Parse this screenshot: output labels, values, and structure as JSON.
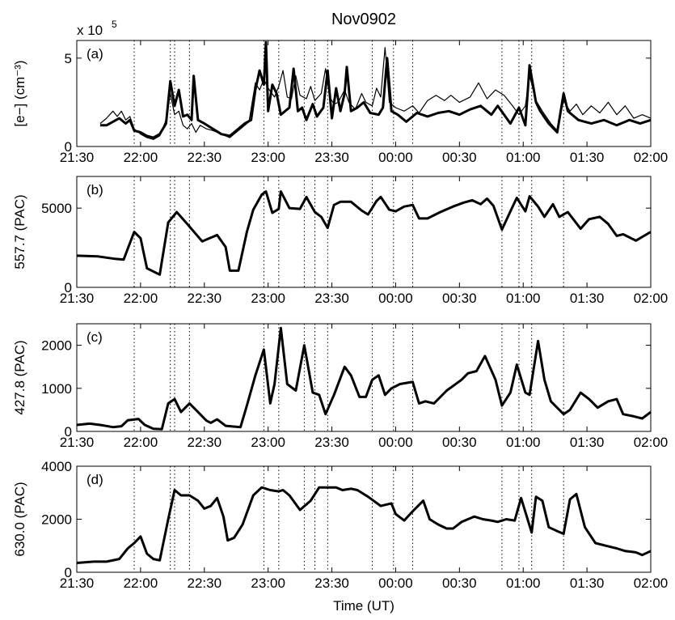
{
  "event_times": [
    27,
    44,
    46,
    53,
    88,
    95,
    107,
    112,
    118,
    139,
    149,
    158,
    200,
    208,
    214,
    229
  ],
  "chart_data": [
    {
      "type": "line",
      "title": "Nov0902",
      "annotation": "(a)",
      "ylabel": "[e−] (cm⁻³)",
      "y_scale_label": "x 10",
      "y_scale_exponent": "5",
      "xlim": [
        0,
        270
      ],
      "xticks": [
        {
          "value": 0,
          "label": "21:30"
        },
        {
          "value": 30,
          "label": "22:00"
        },
        {
          "value": 60,
          "label": "22:30"
        },
        {
          "value": 90,
          "label": "23:00"
        },
        {
          "value": 120,
          "label": "23:30"
        },
        {
          "value": 150,
          "label": "00:00"
        },
        {
          "value": 180,
          "label": "00:30"
        },
        {
          "value": 210,
          "label": "01:00"
        },
        {
          "value": 240,
          "label": "01:30"
        },
        {
          "value": 270,
          "label": "02:00"
        }
      ],
      "ylim": [
        0,
        6
      ],
      "yticks": [
        0,
        5
      ],
      "series": [
        {
          "color": "#000000",
          "width": 3,
          "x": [
            11,
            14,
            17,
            20,
            23,
            25,
            27,
            30,
            33,
            36,
            39,
            42,
            44,
            46,
            48,
            50,
            52,
            54,
            55,
            57,
            60,
            64,
            68,
            72,
            76,
            79,
            82,
            84,
            86,
            88,
            89,
            90,
            92,
            94,
            96,
            98,
            100,
            102,
            104,
            106,
            108,
            111,
            113,
            116,
            118,
            120,
            122,
            124,
            126,
            127,
            129,
            132,
            135,
            138,
            142,
            144,
            146,
            148,
            151,
            155,
            160,
            165,
            170,
            175,
            180,
            185,
            190,
            195,
            198,
            201,
            204,
            208,
            211,
            213,
            216,
            218,
            222,
            226,
            229,
            231,
            236,
            242,
            248,
            254,
            260,
            265,
            270
          ],
          "values": [
            1.2,
            1.2,
            1.4,
            1.6,
            1.3,
            1.5,
            0.9,
            0.8,
            0.6,
            0.5,
            0.7,
            1.3,
            3.7,
            2.3,
            3.2,
            1.7,
            1.8,
            1.5,
            4.0,
            1.5,
            1.3,
            1.0,
            0.7,
            0.6,
            1.0,
            1.3,
            1.5,
            3.2,
            4.3,
            3.5,
            5.9,
            2.0,
            3.5,
            3.0,
            1.8,
            2.0,
            2.2,
            4.4,
            2.0,
            2.2,
            1.5,
            2.4,
            1.7,
            2.2,
            4.3,
            1.6,
            3.3,
            2.0,
            3.0,
            4.5,
            2.0,
            2.2,
            2.5,
            1.9,
            1.8,
            2.2,
            5.0,
            2.0,
            1.8,
            1.4,
            1.9,
            1.7,
            1.9,
            2.0,
            1.8,
            2.1,
            2.3,
            1.8,
            2.3,
            1.8,
            1.3,
            2.2,
            1.2,
            4.6,
            2.5,
            2.0,
            1.3,
            0.8,
            3.0,
            2.0,
            1.5,
            1.3,
            1.5,
            1.2,
            1.5,
            1.3,
            1.5
          ]
        },
        {
          "color": "#000000",
          "width": 1.2,
          "x": [
            11,
            14,
            17,
            19,
            21,
            23,
            25,
            27,
            30,
            33,
            36,
            39,
            42,
            44,
            46,
            48,
            50,
            52,
            54,
            56,
            58,
            61,
            64,
            68,
            72,
            75,
            78,
            81,
            84,
            86,
            88,
            90,
            93,
            95,
            97,
            99,
            101,
            103,
            105,
            108,
            110,
            112,
            115,
            117,
            119,
            121,
            123,
            126,
            128,
            131,
            134,
            136,
            139,
            141,
            143,
            145,
            147,
            150,
            154,
            158,
            161,
            165,
            169,
            173,
            176,
            180,
            185,
            189,
            193,
            197,
            201,
            205,
            208,
            211,
            213,
            216,
            219,
            223,
            226,
            229,
            232,
            235,
            238,
            242,
            246,
            250,
            254,
            258,
            262,
            266,
            270
          ],
          "values": [
            1.3,
            1.6,
            2.0,
            1.7,
            2.0,
            1.5,
            1.7,
            1.0,
            0.7,
            0.5,
            0.4,
            0.6,
            1.5,
            3.0,
            1.8,
            2.0,
            1.2,
            1.0,
            1.3,
            0.8,
            1.2,
            1.0,
            0.9,
            0.7,
            0.5,
            0.8,
            1.1,
            1.4,
            3.6,
            3.2,
            3.8,
            3.3,
            2.8,
            3.4,
            4.3,
            2.8,
            2.7,
            4.0,
            2.9,
            2.7,
            3.4,
            2.6,
            3.0,
            4.4,
            2.8,
            2.4,
            2.5,
            3.2,
            2.5,
            2.1,
            3.0,
            2.5,
            2.3,
            3.3,
            2.8,
            5.6,
            2.5,
            2.2,
            2.0,
            2.3,
            1.9,
            2.6,
            2.9,
            2.6,
            2.9,
            2.5,
            2.8,
            3.6,
            2.7,
            3.2,
            2.9,
            2.3,
            1.8,
            2.3,
            4.0,
            2.6,
            2.0,
            1.3,
            0.9,
            2.6,
            2.0,
            2.4,
            1.8,
            2.3,
            1.9,
            2.5,
            1.8,
            2.3,
            1.6,
            1.8,
            1.6
          ]
        }
      ]
    },
    {
      "type": "line",
      "annotation": "(b)",
      "ylabel": "557.7 (PAC)",
      "xlim": [
        0,
        270
      ],
      "xticks": [
        {
          "value": 0,
          "label": "21:30"
        },
        {
          "value": 30,
          "label": "22:00"
        },
        {
          "value": 60,
          "label": "22:30"
        },
        {
          "value": 90,
          "label": "23:00"
        },
        {
          "value": 120,
          "label": "23:30"
        },
        {
          "value": 150,
          "label": "00:00"
        },
        {
          "value": 180,
          "label": "00:30"
        },
        {
          "value": 210,
          "label": "01:00"
        },
        {
          "value": 240,
          "label": "01:30"
        },
        {
          "value": 270,
          "label": "02:00"
        }
      ],
      "ylim": [
        0,
        7000
      ],
      "yticks": [
        0,
        5000
      ],
      "series": [
        {
          "color": "#000000",
          "width": 3,
          "x": [
            0,
            10,
            18,
            22,
            27,
            30,
            33,
            39,
            43,
            47,
            52,
            59,
            66,
            70,
            72,
            76,
            80,
            83,
            87,
            89,
            92,
            95,
            96,
            100,
            105,
            108,
            112,
            115,
            118,
            121,
            124,
            129,
            134,
            137,
            141,
            143,
            147,
            150,
            154,
            158,
            161,
            165,
            171,
            177,
            182,
            186,
            190,
            193,
            196,
            200,
            204,
            207,
            211,
            213,
            217,
            220,
            224,
            227,
            231,
            237,
            241,
            246,
            250,
            254,
            257,
            263,
            270
          ],
          "values": [
            2000,
            1950,
            1800,
            1750,
            3500,
            3100,
            1200,
            800,
            4100,
            4750,
            4000,
            2900,
            3300,
            2550,
            1050,
            1050,
            3500,
            4900,
            5850,
            6050,
            4700,
            4950,
            6050,
            5000,
            4950,
            5700,
            4750,
            4450,
            3750,
            5200,
            5400,
            5400,
            4850,
            4600,
            5450,
            5700,
            4900,
            4800,
            5100,
            5200,
            4350,
            4350,
            4750,
            5100,
            5350,
            5500,
            5250,
            5600,
            5150,
            3650,
            4800,
            5650,
            4800,
            5750,
            5100,
            4450,
            5250,
            4450,
            4750,
            3700,
            4300,
            4450,
            4000,
            3250,
            3350,
            2950,
            3500
          ]
        }
      ]
    },
    {
      "type": "line",
      "annotation": "(c)",
      "ylabel": "427.8 (PAC)",
      "xlim": [
        0,
        270
      ],
      "xticks": [
        {
          "value": 0,
          "label": "21:30"
        },
        {
          "value": 30,
          "label": "22:00"
        },
        {
          "value": 60,
          "label": "22:30"
        },
        {
          "value": 90,
          "label": "23:00"
        },
        {
          "value": 120,
          "label": "23:30"
        },
        {
          "value": 150,
          "label": "00:00"
        },
        {
          "value": 180,
          "label": "00:30"
        },
        {
          "value": 210,
          "label": "01:00"
        },
        {
          "value": 240,
          "label": "01:30"
        },
        {
          "value": 270,
          "label": "02:00"
        }
      ],
      "ylim": [
        0,
        2500
      ],
      "yticks": [
        0,
        1000,
        2000
      ],
      "series": [
        {
          "color": "#000000",
          "width": 3,
          "x": [
            0,
            6,
            11,
            17,
            21,
            24,
            29,
            32,
            36,
            40,
            43,
            46,
            49,
            53,
            61,
            63,
            66,
            70,
            77,
            80,
            84,
            88,
            91,
            93,
            96,
            99,
            103,
            107,
            111,
            114,
            117,
            121,
            126,
            129,
            133,
            136,
            139,
            142,
            145,
            148,
            152,
            158,
            161,
            164,
            168,
            174,
            181,
            184,
            188,
            192,
            197,
            200,
            204,
            207,
            211,
            213,
            217,
            220,
            223,
            229,
            232,
            237,
            241,
            245,
            250,
            254,
            257,
            262,
            266,
            270
          ],
          "values": [
            150,
            180,
            150,
            100,
            120,
            260,
            290,
            150,
            60,
            50,
            650,
            750,
            450,
            650,
            250,
            200,
            280,
            130,
            100,
            600,
            1300,
            1900,
            650,
            1100,
            2400,
            1100,
            950,
            2000,
            900,
            850,
            400,
            850,
            1500,
            1300,
            800,
            800,
            1200,
            1300,
            850,
            1000,
            1100,
            1150,
            650,
            700,
            650,
            950,
            1200,
            1350,
            1400,
            1750,
            1200,
            600,
            900,
            1550,
            900,
            850,
            2100,
            1200,
            700,
            400,
            500,
            900,
            750,
            550,
            700,
            750,
            400,
            350,
            300,
            450
          ]
        }
      ]
    },
    {
      "type": "line",
      "annotation": "(d)",
      "ylabel": "630.0 (PAC)",
      "xlabel": "Time (UT)",
      "xlim": [
        0,
        270
      ],
      "xticks": [
        {
          "value": 0,
          "label": "21:30"
        },
        {
          "value": 30,
          "label": "22:00"
        },
        {
          "value": 60,
          "label": "22:30"
        },
        {
          "value": 90,
          "label": "23:00"
        },
        {
          "value": 120,
          "label": "23:30"
        },
        {
          "value": 150,
          "label": "00:00"
        },
        {
          "value": 180,
          "label": "00:30"
        },
        {
          "value": 210,
          "label": "01:00"
        },
        {
          "value": 240,
          "label": "01:30"
        },
        {
          "value": 270,
          "label": "02:00"
        }
      ],
      "ylim": [
        0,
        4000
      ],
      "yticks": [
        0,
        2000,
        4000
      ],
      "series": [
        {
          "color": "#000000",
          "width": 3,
          "x": [
            0,
            8,
            14,
            20,
            24,
            27,
            30,
            33,
            36,
            39,
            43,
            46,
            49,
            53,
            57,
            60,
            63,
            66,
            69,
            71,
            74,
            78,
            83,
            87,
            91,
            95,
            97,
            100,
            105,
            110,
            114,
            118,
            122,
            125,
            129,
            132,
            137,
            143,
            148,
            150,
            154,
            158,
            163,
            166,
            170,
            174,
            177,
            181,
            187,
            191,
            195,
            198,
            202,
            206,
            209,
            214,
            216,
            219,
            222,
            226,
            229,
            232,
            235,
            239,
            244,
            249,
            254,
            258,
            263,
            266,
            270
          ],
          "values": [
            350,
            400,
            400,
            500,
            900,
            1100,
            1350,
            700,
            500,
            450,
            2000,
            3100,
            2900,
            2900,
            2700,
            2400,
            2500,
            2800,
            2100,
            1200,
            1300,
            1800,
            2900,
            3200,
            3100,
            3050,
            3100,
            2900,
            2350,
            2700,
            3200,
            3200,
            3200,
            3100,
            3150,
            3100,
            2850,
            2500,
            2600,
            2200,
            1950,
            2300,
            2700,
            2000,
            1800,
            1650,
            1650,
            1900,
            2100,
            2000,
            1950,
            1900,
            2000,
            1950,
            2800,
            1500,
            2850,
            2700,
            1700,
            1550,
            1450,
            2750,
            2950,
            1700,
            1100,
            1000,
            900,
            800,
            750,
            650,
            800
          ]
        }
      ]
    }
  ]
}
